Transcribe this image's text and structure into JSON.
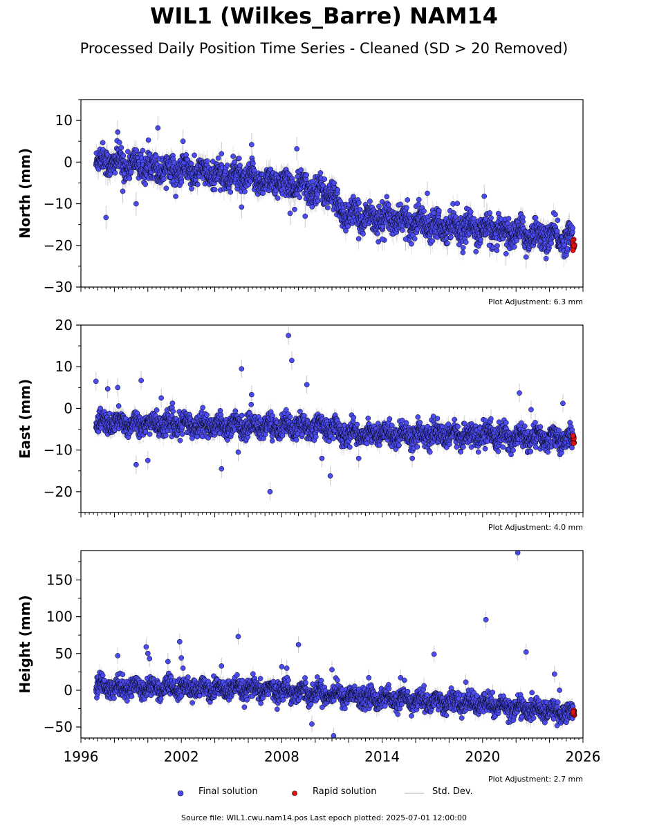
{
  "figure": {
    "title": "WIL1 (Wilkes_Barre) NAM14",
    "subtitle": "Processed Daily Position Time Series - Cleaned (SD > 20 Removed)",
    "source_line": "Source file: WIL1.cwu.nam14.pos  Last epoch plotted: 2025-07-01 12:00:00"
  },
  "legend": {
    "final_label": "Final solution",
    "rapid_label": "Rapid solution",
    "sd_label": "Std. Dev."
  },
  "colors": {
    "final": "#4b4bf0",
    "rapid": "#e01010",
    "std_dev": "#c8c8c8",
    "marker_edge": "#000000"
  },
  "chart_data": [
    {
      "type": "scatter",
      "ylabel": "North (mm)",
      "adjustment": "Plot Adjustment: 6.3 mm",
      "xlim": [
        1996,
        2026
      ],
      "ylim": [
        -30,
        15
      ],
      "yticks": [
        -30,
        -20,
        -10,
        0,
        10
      ],
      "trend": [
        [
          1996.9,
          0.5
        ],
        [
          2008,
          -5
        ],
        [
          2011.0,
          -7.5
        ],
        [
          2011.6,
          -12.5
        ],
        [
          2025.5,
          -18.5
        ]
      ],
      "scatter_sd": 2.0,
      "outliers": [
        [
          1997.5,
          -13.3
        ],
        [
          1998.2,
          7.2
        ],
        [
          1998.5,
          -7.0
        ],
        [
          1999.3,
          -10.0
        ],
        [
          2000.6,
          8.2
        ],
        [
          2002.1,
          5.0
        ],
        [
          2004.4,
          2.0
        ],
        [
          2006.2,
          4.2
        ],
        [
          2005.6,
          -10.8
        ],
        [
          2008.5,
          -12.3
        ],
        [
          2008.9,
          3.2
        ],
        [
          2009.4,
          -13.0
        ],
        [
          2014.0,
          -18.5
        ],
        [
          2015.4,
          -18.5
        ],
        [
          2016.7,
          -7.5
        ],
        [
          2017.9,
          -19.5
        ],
        [
          2020.1,
          -8.2
        ],
        [
          2020.4,
          -20.0
        ],
        [
          2021.4,
          -22.0
        ],
        [
          2022.6,
          -22.8
        ]
      ],
      "rapid": {
        "x_range": [
          2025.4,
          2025.5
        ],
        "y_center": -19.5,
        "y_spread": 3.5
      }
    },
    {
      "type": "scatter",
      "ylabel": "East (mm)",
      "adjustment": "Plot Adjustment: 4.0 mm",
      "xlim": [
        1996,
        2026
      ],
      "ylim": [
        -25,
        20
      ],
      "yticks": [
        -20,
        -10,
        0,
        10,
        20
      ],
      "trend": [
        [
          1996.9,
          -3.5
        ],
        [
          2011.0,
          -4.5
        ],
        [
          2011.6,
          -6.0
        ],
        [
          2019.5,
          -6.5
        ],
        [
          2025.5,
          -7.5
        ]
      ],
      "scatter_sd": 1.6,
      "outliers": [
        [
          1996.9,
          6.5
        ],
        [
          1997.6,
          4.7
        ],
        [
          1998.2,
          5.0
        ],
        [
          1999.3,
          -13.5
        ],
        [
          1999.6,
          6.7
        ],
        [
          2000.0,
          -12.5
        ],
        [
          2000.8,
          2.5
        ],
        [
          2004.4,
          -14.5
        ],
        [
          2005.4,
          -10.5
        ],
        [
          2005.6,
          9.5
        ],
        [
          2006.2,
          3.3
        ],
        [
          2007.3,
          -20.0
        ],
        [
          2008.4,
          17.5
        ],
        [
          2008.6,
          11.5
        ],
        [
          2009.5,
          5.7
        ],
        [
          2010.4,
          -12.0
        ],
        [
          2010.9,
          -16.2
        ],
        [
          2012.6,
          -12.0
        ],
        [
          2015.8,
          -12.0
        ],
        [
          2022.2,
          3.7
        ],
        [
          2022.9,
          -0.3
        ],
        [
          2024.8,
          1.2
        ],
        [
          2020.5,
          -2.5
        ]
      ],
      "rapid": {
        "x_range": [
          2025.4,
          2025.5
        ],
        "y_center": -7.5,
        "y_spread": 2.0
      }
    },
    {
      "type": "scatter",
      "ylabel": "Height (mm)",
      "adjustment": "Plot Adjustment: 2.7 mm",
      "xlim": [
        1996,
        2026
      ],
      "ylim": [
        -65,
        190
      ],
      "yticks": [
        -50,
        0,
        50,
        100,
        150
      ],
      "xticks": [
        1996,
        2002,
        2008,
        2014,
        2020,
        2026
      ],
      "trend": [
        [
          1996.9,
          5
        ],
        [
          2008,
          0
        ],
        [
          2011.0,
          -5
        ],
        [
          2014,
          -12
        ],
        [
          2019.5,
          -18
        ],
        [
          2025.5,
          -32
        ]
      ],
      "scatter_sd": 8.0,
      "outliers": [
        [
          1998.2,
          47
        ],
        [
          1999.9,
          59
        ],
        [
          2000.0,
          50
        ],
        [
          2000.1,
          43
        ],
        [
          2001.2,
          39
        ],
        [
          2001.9,
          66
        ],
        [
          2002.0,
          44
        ],
        [
          2002.1,
          30
        ],
        [
          2004.4,
          33
        ],
        [
          2005.4,
          73
        ],
        [
          2008.0,
          32
        ],
        [
          2008.3,
          30
        ],
        [
          2009.0,
          62
        ],
        [
          2009.8,
          -46
        ],
        [
          2011.0,
          28
        ],
        [
          2011.1,
          -62
        ],
        [
          2013.2,
          17
        ],
        [
          2015.1,
          17
        ],
        [
          2016.5,
          6
        ],
        [
          2017.1,
          49
        ],
        [
          2019.0,
          11
        ],
        [
          2020.2,
          96
        ],
        [
          2020.6,
          -3
        ],
        [
          2022.1,
          187
        ],
        [
          2022.6,
          52
        ],
        [
          2024.3,
          22
        ],
        [
          2024.6,
          0
        ]
      ],
      "rapid": {
        "x_range": [
          2025.4,
          2025.5
        ],
        "y_center": -30,
        "y_spread": 8
      }
    }
  ]
}
